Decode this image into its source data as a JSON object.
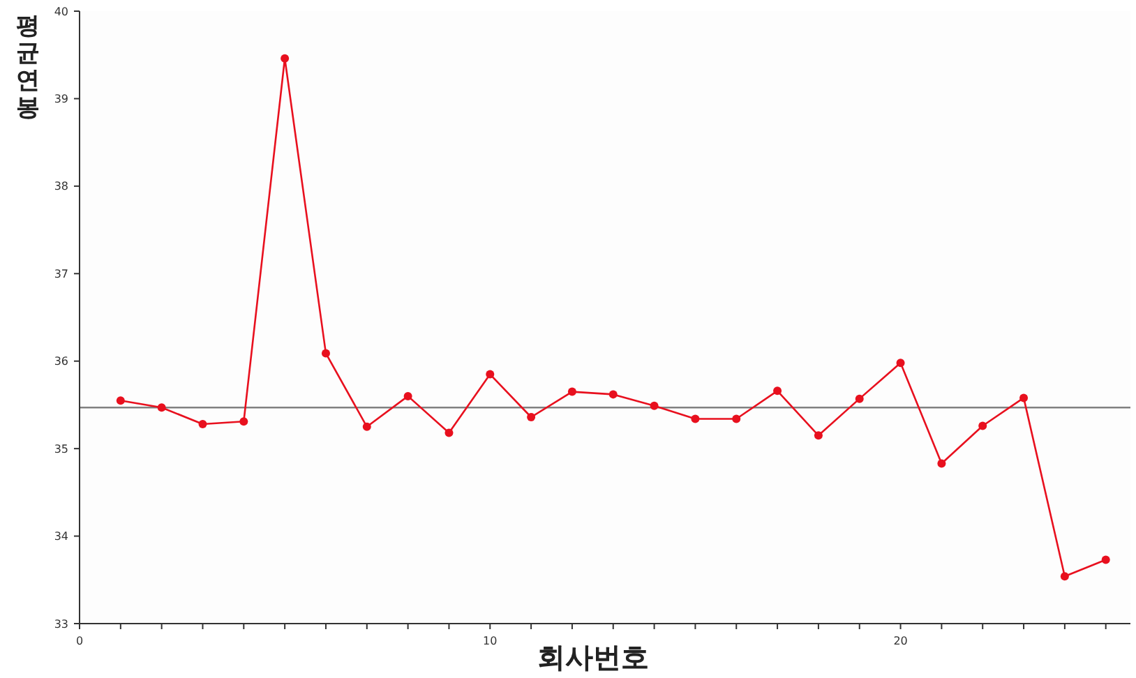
{
  "chart_data": {
    "type": "line",
    "xlabel": "회사번호",
    "ylabel": "평균연봉",
    "x": [
      1,
      2,
      3,
      4,
      5,
      6,
      7,
      8,
      9,
      10,
      11,
      12,
      13,
      14,
      15,
      16,
      17,
      18,
      19,
      20,
      21,
      22,
      23,
      24,
      25
    ],
    "series": [
      {
        "color": "#e8101e",
        "values": [
          35.55,
          35.47,
          35.28,
          35.31,
          39.46,
          36.09,
          35.25,
          35.6,
          35.18,
          35.85,
          35.36,
          35.65,
          35.62,
          35.49,
          35.34,
          35.34,
          35.66,
          35.15,
          35.57,
          35.98,
          34.83,
          35.26,
          35.58,
          33.54,
          33.73
        ]
      }
    ],
    "xlim": [
      0,
      25.6
    ],
    "xticks": [
      0,
      {
        "value": 1,
        "label": null
      },
      {
        "value": 2,
        "label": null
      },
      {
        "value": 3,
        "label": null
      },
      {
        "value": 4,
        "label": null
      },
      {
        "value": 5,
        "label": null
      },
      {
        "value": 6,
        "label": null
      },
      {
        "value": 7,
        "label": null
      },
      {
        "value": 8,
        "label": null
      },
      {
        "value": 9,
        "label": null
      },
      10,
      {
        "value": 11,
        "label": null
      },
      {
        "value": 12,
        "label": null
      },
      {
        "value": 13,
        "label": null
      },
      {
        "value": 14,
        "label": null
      },
      {
        "value": 15,
        "label": null
      },
      {
        "value": 16,
        "label": null
      },
      {
        "value": 17,
        "label": null
      },
      {
        "value": 18,
        "label": null
      },
      {
        "value": 19,
        "label": null
      },
      20,
      {
        "value": 21,
        "label": null
      },
      {
        "value": 22,
        "label": null
      },
      {
        "value": 23,
        "label": null
      },
      {
        "value": 24,
        "label": null
      },
      {
        "value": 25,
        "label": null
      }
    ],
    "ylim": [
      33,
      40
    ],
    "yticks": [
      33,
      34,
      35,
      36,
      37,
      38,
      39,
      40
    ],
    "ref_lines": [
      {
        "axis": "y",
        "value": 35.47,
        "color": "#808080"
      }
    ],
    "marker": "circle",
    "line_style": "solid",
    "grid": false
  }
}
